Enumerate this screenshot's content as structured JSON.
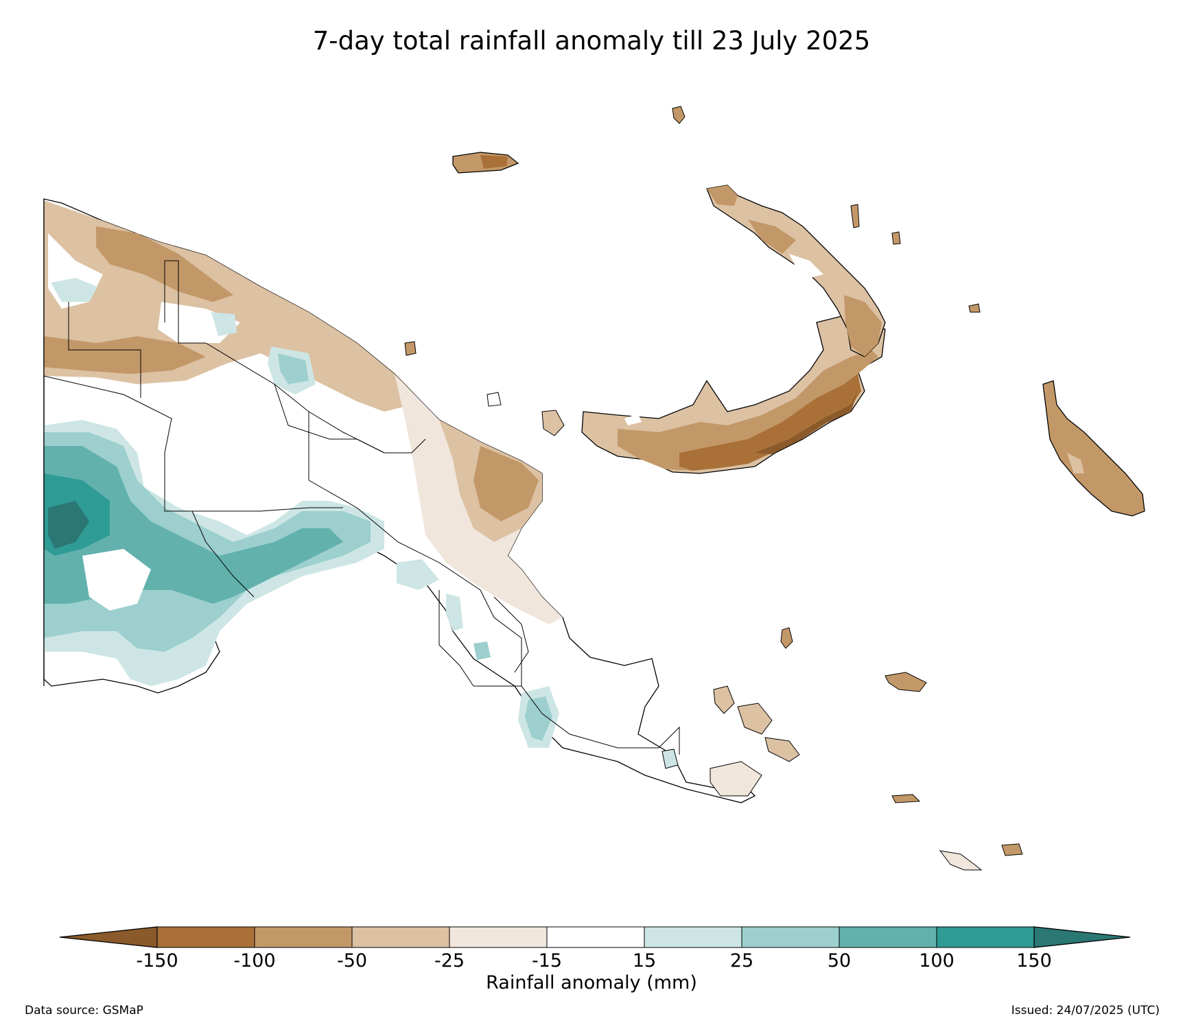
{
  "title": "7-day total rainfall anomaly till 23 July 2025",
  "colorbar": {
    "label": "Rainfall anomaly (mm)",
    "ticks": [
      "-150",
      "-100",
      "-50",
      "-25",
      "-15",
      "15",
      "25",
      "50",
      "100",
      "150"
    ],
    "colors": {
      "extend_low": "#8b5a2b",
      "bin_-150_-100": "#a97038",
      "bin_-100_-50": "#c39868",
      "bin_-50_-25": "#dcc1a3",
      "bin_-25_-15": "#f1e6dc",
      "bin_-15_15": "#ffffff",
      "bin_15_25": "#cde6e5",
      "bin_25_50": "#9ccfcd",
      "bin_50_100": "#62b1ad",
      "bin_100_150": "#2f9b95",
      "extend_high": "#2a7773"
    }
  },
  "source": "Data source: GSMaP",
  "issued": "Issued: 24/07/2025 (UTC)"
}
